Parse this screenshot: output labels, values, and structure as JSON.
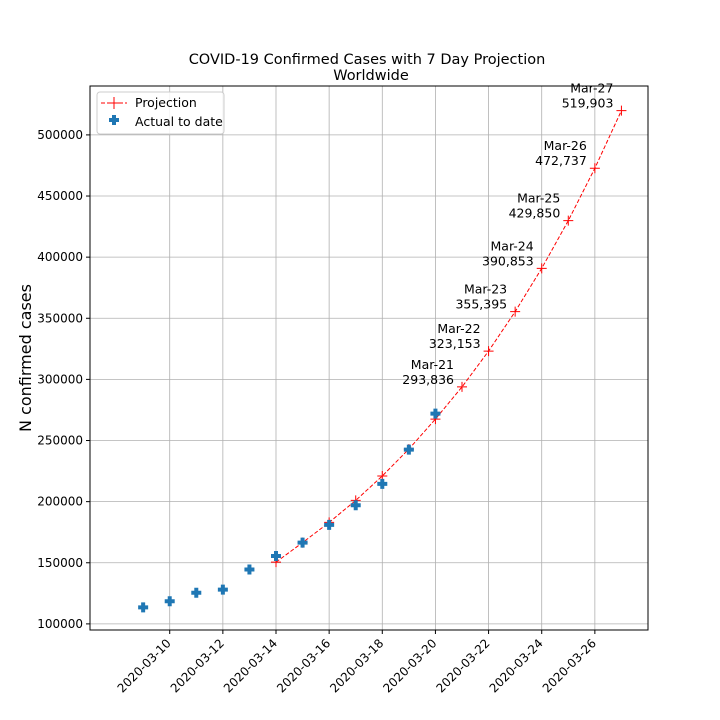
{
  "chart_data": {
    "type": "line",
    "title": "COVID-19 Confirmed Cases with 7 Day Projection",
    "subtitle": "Worldwide",
    "xlabel": "",
    "ylabel": "N confirmed cases",
    "xlim": [
      "2020-03-07",
      "2020-03-28"
    ],
    "ylim": [
      95000,
      540000
    ],
    "grid": true,
    "legend_position": "top-left",
    "x_ticks": [
      "2020-03-10",
      "2020-03-12",
      "2020-03-14",
      "2020-03-16",
      "2020-03-18",
      "2020-03-20",
      "2020-03-22",
      "2020-03-24",
      "2020-03-26"
    ],
    "y_ticks": [
      100000,
      150000,
      200000,
      250000,
      300000,
      350000,
      400000,
      450000,
      500000
    ],
    "series": [
      {
        "name": "Projection",
        "style": "dashed-line-plus-marker",
        "color": "#ff0000",
        "x": [
          "2020-03-14",
          "2020-03-15",
          "2020-03-16",
          "2020-03-17",
          "2020-03-18",
          "2020-03-19",
          "2020-03-20",
          "2020-03-21",
          "2020-03-22",
          "2020-03-23",
          "2020-03-24",
          "2020-03-25",
          "2020-03-26",
          "2020-03-27"
        ],
        "y": [
          150500,
          166500,
          183000,
          201000,
          221000,
          243000,
          267500,
          293836,
          323153,
          355395,
          390853,
          429850,
          472737,
          519903
        ]
      },
      {
        "name": "Actual to date",
        "style": "plus-filled-marker",
        "color": "#1f77b4",
        "x": [
          "2020-03-09",
          "2020-03-10",
          "2020-03-11",
          "2020-03-12",
          "2020-03-13",
          "2020-03-14",
          "2020-03-15",
          "2020-03-16",
          "2020-03-17",
          "2020-03-18",
          "2020-03-19",
          "2020-03-20"
        ],
        "y": [
          113500,
          118500,
          125500,
          128000,
          144500,
          155500,
          166500,
          181000,
          197000,
          214500,
          242500,
          272000
        ]
      }
    ],
    "annotations": [
      {
        "x": "2020-03-21",
        "y": 293836,
        "line1": "Mar-21",
        "line2": "293,836"
      },
      {
        "x": "2020-03-22",
        "y": 323153,
        "line1": "Mar-22",
        "line2": "323,153"
      },
      {
        "x": "2020-03-23",
        "y": 355395,
        "line1": "Mar-23",
        "line2": "355,395"
      },
      {
        "x": "2020-03-24",
        "y": 390853,
        "line1": "Mar-24",
        "line2": "390,853"
      },
      {
        "x": "2020-03-25",
        "y": 429850,
        "line1": "Mar-25",
        "line2": "429,850"
      },
      {
        "x": "2020-03-26",
        "y": 472737,
        "line1": "Mar-26",
        "line2": "472,737"
      },
      {
        "x": "2020-03-27",
        "y": 519903,
        "line1": "Mar-27",
        "line2": "519,903"
      }
    ]
  }
}
